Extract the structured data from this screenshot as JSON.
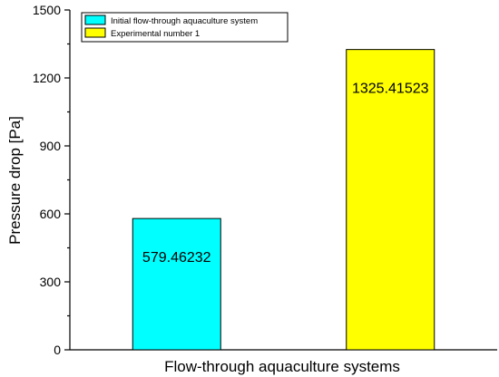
{
  "chart_data": {
    "type": "bar",
    "categories": [
      "Initial flow-through aquaculture system",
      "Experimental number 1"
    ],
    "values": [
      579.46232,
      1325.41523
    ],
    "value_labels": [
      "579.46232",
      "1325.41523"
    ],
    "colors": [
      "#00ffff",
      "#ffff00"
    ],
    "title": "",
    "xlabel": "Flow-through aquaculture systems",
    "ylabel": "Pressure drop [Pa]",
    "ylim": [
      0,
      1500
    ],
    "yticks": [
      0,
      300,
      600,
      900,
      1200,
      1500
    ],
    "legend": {
      "position": "top-left",
      "entries": [
        "Initial flow-through aquaculture system",
        "Experimental number 1"
      ]
    },
    "grid": false
  }
}
